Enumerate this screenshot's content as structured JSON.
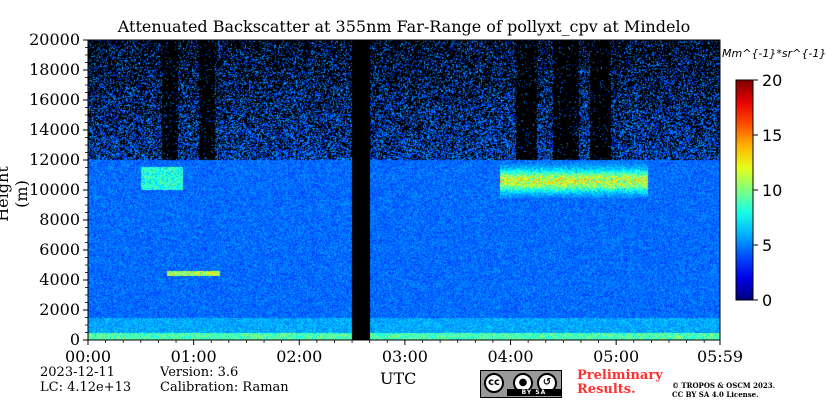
{
  "chart_data": {
    "type": "heatmap",
    "title": "Attenuated Backscatter at 355nm Far-Range of pollyxt_cpv at Mindelo",
    "xlabel": "UTC",
    "ylabel": "Height (m)",
    "x_ticks": [
      "00:00",
      "01:00",
      "02:00",
      "03:00",
      "04:00",
      "05:00",
      "05:59"
    ],
    "x_tick_hours": [
      0,
      1,
      2,
      3,
      4,
      5,
      5.983
    ],
    "xlim_hours": [
      0,
      5.983
    ],
    "y_ticks": [
      0,
      2000,
      4000,
      6000,
      8000,
      10000,
      12000,
      14000,
      16000,
      18000,
      20000
    ],
    "ylim": [
      0,
      20000
    ],
    "colorbar": {
      "unit": "Mm^{-1}*sr^{-1}",
      "ticks": [
        0,
        5,
        10,
        15,
        20
      ],
      "range": [
        0,
        20
      ],
      "colormap": "jet"
    },
    "missing_data_hours": [
      2.5,
      2.67
    ],
    "boundary_layer_top_m": 500,
    "aerosol_layer_m": [
      4300,
      4600
    ],
    "cirrus_layer_m": [
      9500,
      12500
    ],
    "noise_top_m": 12000
  },
  "footer": {
    "date": "2023-12-11",
    "lc": "LC: 4.12e+13",
    "version": "Version: 3.6",
    "calibration": "Calibration: Raman",
    "preliminary_line1": "Preliminary",
    "preliminary_line2": "Results.",
    "copyright_line1": "© TROPOS & OSCM 2023.",
    "copyright_line2": "CC BY SA 4.0 License.",
    "license_badge": "BY SA",
    "license_badge_cc": "cc"
  }
}
